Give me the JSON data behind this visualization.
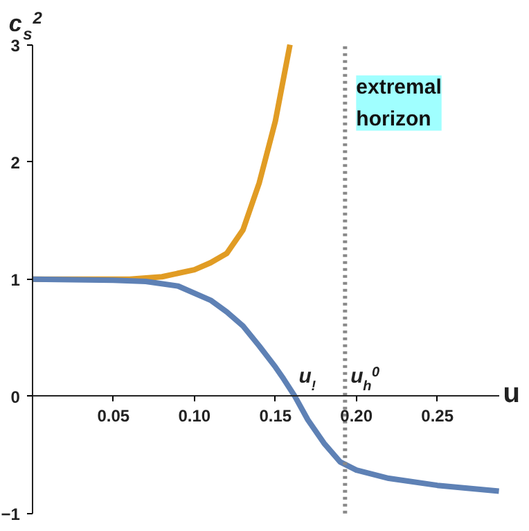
{
  "chart_data": {
    "type": "line",
    "xlabel": "u",
    "ylabel": "c$_{s}$$^{2}$",
    "xlim": [
      0,
      0.288
    ],
    "ylim": [
      -1,
      3
    ],
    "xticks": [
      0.05,
      {
        "value": 0.1,
        "label": "0.10"
      },
      0.15,
      {
        "value": 0.2,
        "label": "0.20"
      },
      0.25
    ],
    "yticks": [
      -1,
      0,
      1,
      2,
      3
    ],
    "grid": false,
    "marker": "none",
    "line_style": "solid",
    "series": [
      {
        "color": "#e19c24",
        "x": [
          0,
          0.06,
          0.08,
          0.1,
          0.11,
          0.12,
          0.13,
          0.14,
          0.15,
          0.159
        ],
        "values": [
          1,
          1,
          1.02,
          1.08,
          1.14,
          1.22,
          1.42,
          1.82,
          2.35,
          3
        ]
      },
      {
        "color": "#5e81b5",
        "x": [
          0,
          0.05,
          0.07,
          0.09,
          0.11,
          0.12,
          0.13,
          0.14,
          0.15,
          0.155,
          0.162,
          0.17,
          0.18,
          0.19,
          0.2,
          0.22,
          0.25,
          0.288
        ],
        "values": [
          1,
          0.99,
          0.98,
          0.94,
          0.82,
          0.72,
          0.6,
          0.43,
          0.25,
          0.15,
          0,
          -0.2,
          -0.4,
          -0.56,
          -0.63,
          -0.7,
          -0.76,
          -0.81
        ]
      }
    ],
    "ref_lines": [
      {
        "axis": "x",
        "value": 0.193,
        "label": "extremal\nhorizon",
        "color": "#888888",
        "line_style": "dotted"
      }
    ],
    "annotations": [
      {
        "text": "u$_{!}$",
        "x": 0.161,
        "y": 0
      },
      {
        "text": "u$_{h}$$^{0}$",
        "x": 0.193,
        "y": 0
      }
    ]
  }
}
